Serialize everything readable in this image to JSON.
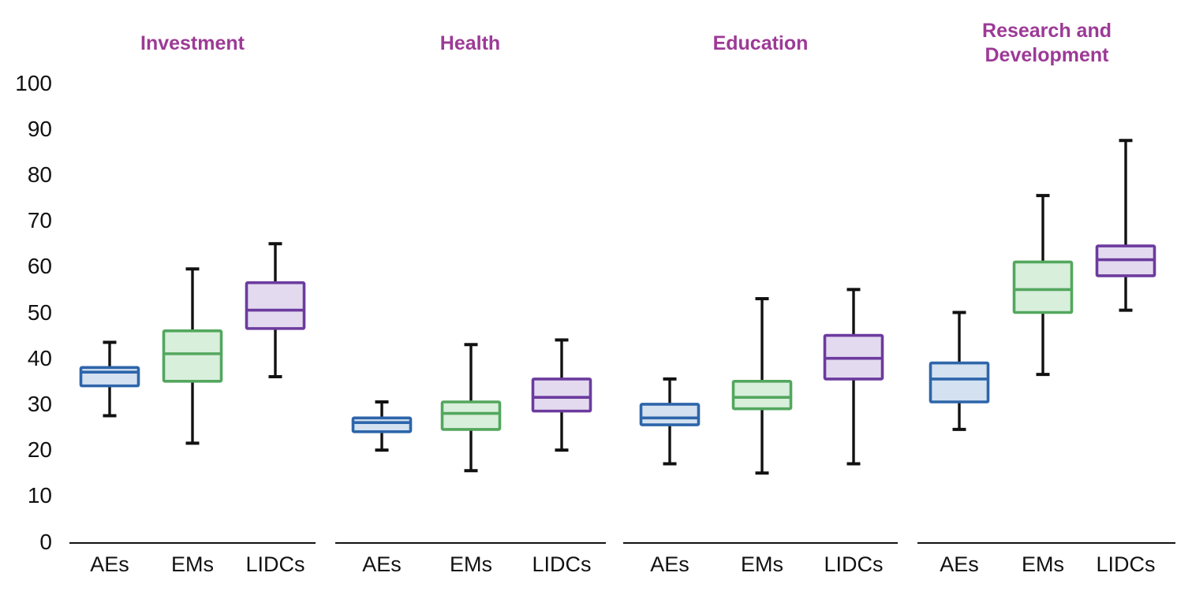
{
  "figure": {
    "background": "#ffffff",
    "title_color": "#9c3a96",
    "axis_color": "#111111",
    "whisker_color": "#111111"
  },
  "chart_data": {
    "type": "boxplot",
    "title": "",
    "xlabel": "",
    "ylabel": "",
    "ylim": [
      0,
      100
    ],
    "yticks": [
      0,
      10,
      20,
      30,
      40,
      50,
      60,
      70,
      80,
      90,
      100
    ],
    "grid": false,
    "legend": "none",
    "series_labels": [
      "AEs",
      "EMs",
      "LIDCs"
    ],
    "colors": {
      "AEs": {
        "stroke": "#2d65aa",
        "fill": "#d3e1f0"
      },
      "EMs": {
        "stroke": "#53a75e",
        "fill": "#d8efdc"
      },
      "LIDCs": {
        "stroke": "#6c3b9e",
        "fill": "#e3daf0"
      }
    },
    "groups": [
      {
        "title": "Investment",
        "boxes": [
          {
            "series": "AEs",
            "min": 27.5,
            "q1": 34,
            "median": 37,
            "q3": 38,
            "max": 43.5
          },
          {
            "series": "EMs",
            "min": 21.5,
            "q1": 35,
            "median": 41,
            "q3": 46,
            "max": 59.5
          },
          {
            "series": "LIDCs",
            "min": 36,
            "q1": 46.5,
            "median": 50.5,
            "q3": 56.5,
            "max": 65
          }
        ]
      },
      {
        "title": "Health",
        "boxes": [
          {
            "series": "AEs",
            "min": 20,
            "q1": 24,
            "median": 26,
            "q3": 27,
            "max": 30.5
          },
          {
            "series": "EMs",
            "min": 15.5,
            "q1": 24.5,
            "median": 28,
            "q3": 30.5,
            "max": 43
          },
          {
            "series": "LIDCs",
            "min": 20,
            "q1": 28.5,
            "median": 31.5,
            "q3": 35.5,
            "max": 44
          }
        ]
      },
      {
        "title": "Education",
        "boxes": [
          {
            "series": "AEs",
            "min": 17,
            "q1": 25.5,
            "median": 27,
            "q3": 30,
            "max": 35.5
          },
          {
            "series": "EMs",
            "min": 15,
            "q1": 29,
            "median": 31.5,
            "q3": 35,
            "max": 53
          },
          {
            "series": "LIDCs",
            "min": 17,
            "q1": 35.5,
            "median": 40,
            "q3": 45,
            "max": 55
          }
        ]
      },
      {
        "title": "Research and Development",
        "boxes": [
          {
            "series": "AEs",
            "min": 24.5,
            "q1": 30.5,
            "median": 35.5,
            "q3": 39,
            "max": 50
          },
          {
            "series": "EMs",
            "min": 36.5,
            "q1": 50,
            "median": 55,
            "q3": 61,
            "max": 75.5
          },
          {
            "series": "LIDCs",
            "min": 50.5,
            "q1": 58,
            "median": 61.5,
            "q3": 64.5,
            "max": 87.5
          }
        ]
      }
    ]
  }
}
